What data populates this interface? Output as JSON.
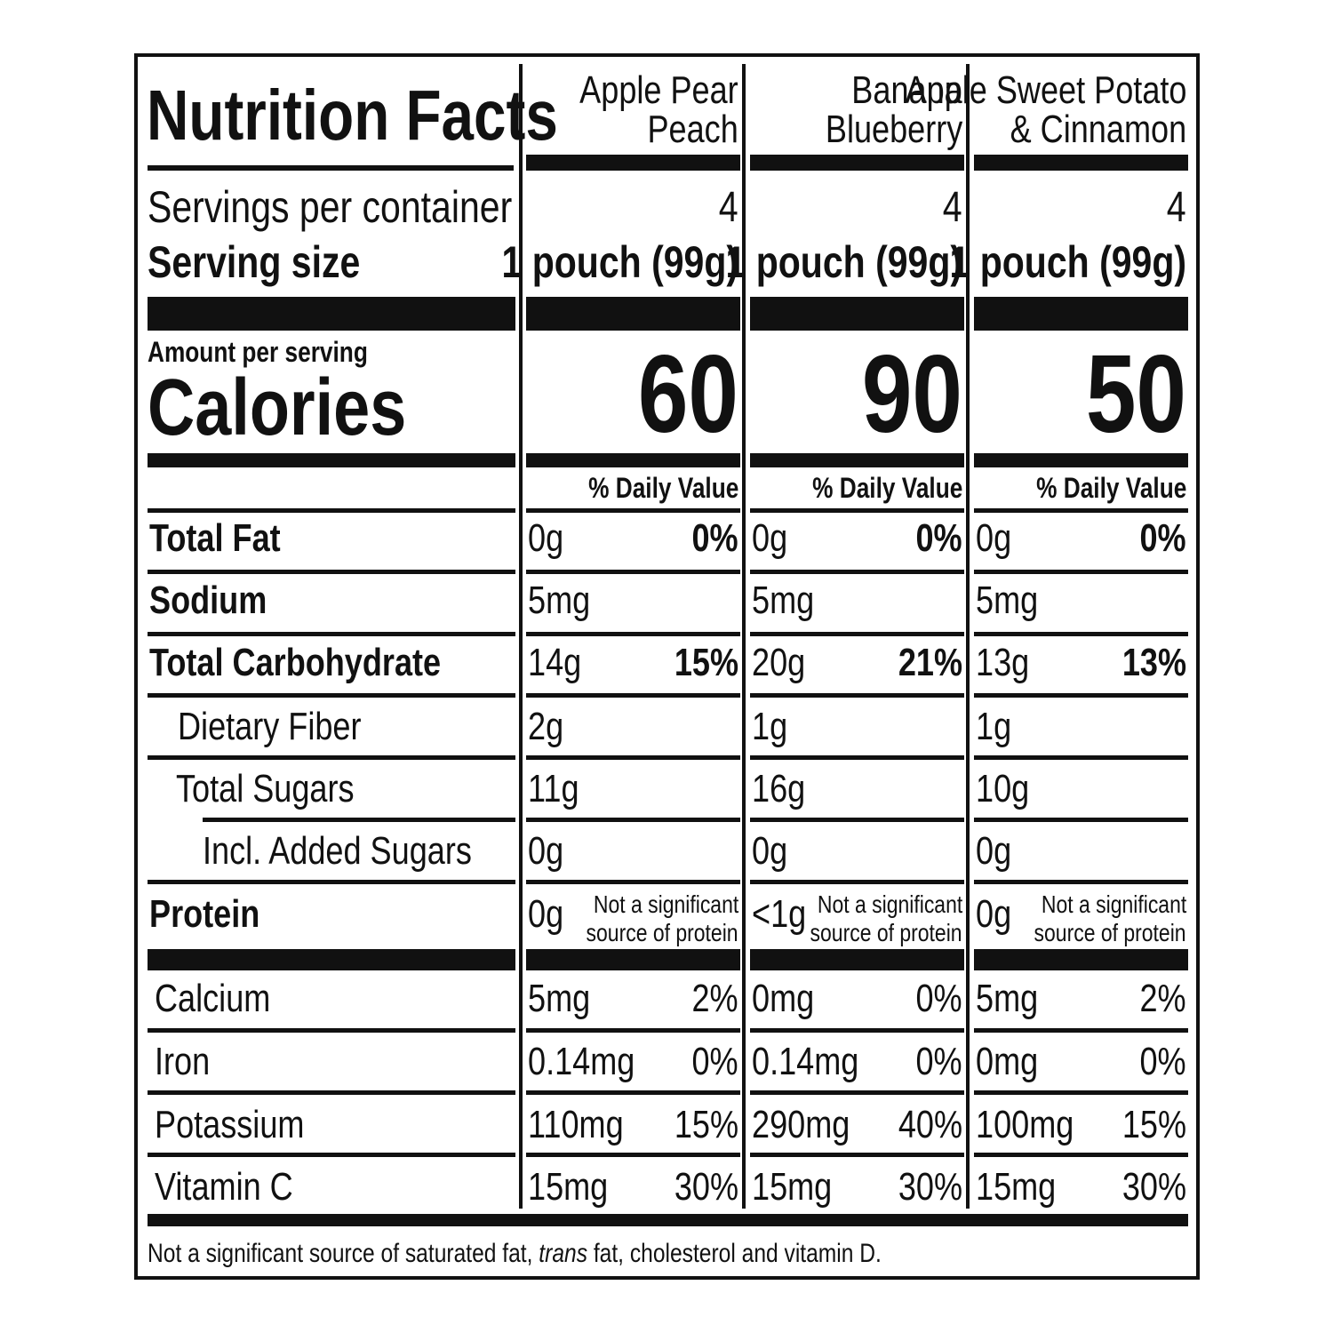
{
  "label": {
    "title": "Nutrition Facts",
    "servings_per_container_label": "Servings per container",
    "serving_size_label": "Serving size",
    "amount_per_serving": "Amount per serving",
    "calories_label": "Calories",
    "daily_value_label": "% Daily Value",
    "nutrients": {
      "total_fat": "Total Fat",
      "sodium": "Sodium",
      "total_carbohydrate": "Total Carbohydrate",
      "dietary_fiber": "Dietary Fiber",
      "total_sugars": "Total Sugars",
      "added_sugars": "Incl. Added Sugars",
      "protein": "Protein",
      "calcium": "Calcium",
      "iron": "Iron",
      "potassium": "Potassium",
      "vitamin_c": "Vitamin C"
    },
    "protein_note_line1": "Not a significant",
    "protein_note_line2": "source of protein",
    "footnote_part1": "Not a significant source of saturated fat, ",
    "footnote_italic": "trans",
    "footnote_part2": " fat, cholesterol and vitamin D."
  },
  "products": [
    {
      "name_line1": "Apple Pear",
      "name_line2": "Peach",
      "servings": "4",
      "serving_size": "1 pouch (99g)",
      "calories": "60",
      "total_fat": "0g",
      "total_fat_dv": "0%",
      "sodium": "5mg",
      "total_carb": "14g",
      "total_carb_dv": "15%",
      "fiber": "2g",
      "sugars": "11g",
      "added_sugars": "0g",
      "protein": "0g",
      "calcium": "5mg",
      "calcium_dv": "2%",
      "iron": "0.14mg",
      "iron_dv": "0%",
      "potassium": "110mg",
      "potassium_dv": "15%",
      "vitamin_c": "15mg",
      "vitamin_c_dv": "30%"
    },
    {
      "name_line1": "Banana",
      "name_line2": "Blueberry",
      "servings": "4",
      "serving_size": "1 pouch (99g)",
      "calories": "90",
      "total_fat": "0g",
      "total_fat_dv": "0%",
      "sodium": "5mg",
      "total_carb": "20g",
      "total_carb_dv": "21%",
      "fiber": "1g",
      "sugars": "16g",
      "added_sugars": "0g",
      "protein": "<1g",
      "calcium": "0mg",
      "calcium_dv": "0%",
      "iron": "0.14mg",
      "iron_dv": "0%",
      "potassium": "290mg",
      "potassium_dv": "40%",
      "vitamin_c": "15mg",
      "vitamin_c_dv": "30%"
    },
    {
      "name_line1": "Apple Sweet Potato",
      "name_line2": "& Cinnamon",
      "servings": "4",
      "serving_size": "1 pouch (99g)",
      "calories": "50",
      "total_fat": "0g",
      "total_fat_dv": "0%",
      "sodium": "5mg",
      "total_carb": "13g",
      "total_carb_dv": "13%",
      "fiber": "1g",
      "sugars": "10g",
      "added_sugars": "0g",
      "protein": "0g",
      "calcium": "5mg",
      "calcium_dv": "2%",
      "iron": "0mg",
      "iron_dv": "0%",
      "potassium": "100mg",
      "potassium_dv": "15%",
      "vitamin_c": "15mg",
      "vitamin_c_dv": "30%"
    }
  ]
}
